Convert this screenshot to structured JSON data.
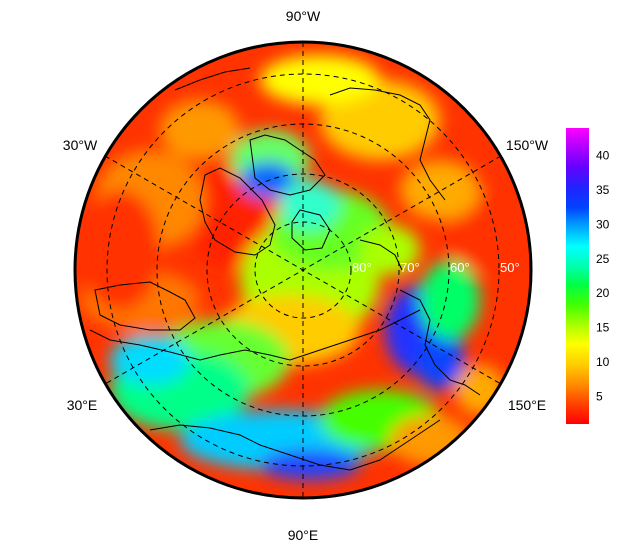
{
  "map": {
    "projection": "north-polar-stereographic",
    "outer_latitude_label_values": [],
    "lon_labels": {
      "top": "90°W",
      "upper_left": "30°W",
      "upper_right": "150°W",
      "lower_left": "30°E",
      "lower_right": "150°E",
      "bottom": "90°E"
    },
    "lat_labels": [
      "80°",
      "70°",
      "60°",
      "50°"
    ],
    "graticule_style": "dashed",
    "field_description_colors": {
      "ocean_default": "#ff2a00",
      "coast_line": "#000000",
      "grid_line": "#000000"
    }
  },
  "colorbar": {
    "ticks": [
      "40",
      "35",
      "30",
      "25",
      "20",
      "15",
      "10",
      "5"
    ],
    "tick_values": [
      40,
      35,
      30,
      25,
      20,
      15,
      10,
      5
    ],
    "range": [
      1,
      44
    ],
    "colors": [
      "#ff0000",
      "#ff4400",
      "#ff8800",
      "#ffcc00",
      "#ffff00",
      "#b0ff00",
      "#44ff00",
      "#00ff44",
      "#00ffaa",
      "#00ffff",
      "#00a0ff",
      "#0044ff",
      "#2222ff",
      "#6600ff",
      "#aa00ff",
      "#ff00ff"
    ]
  }
}
